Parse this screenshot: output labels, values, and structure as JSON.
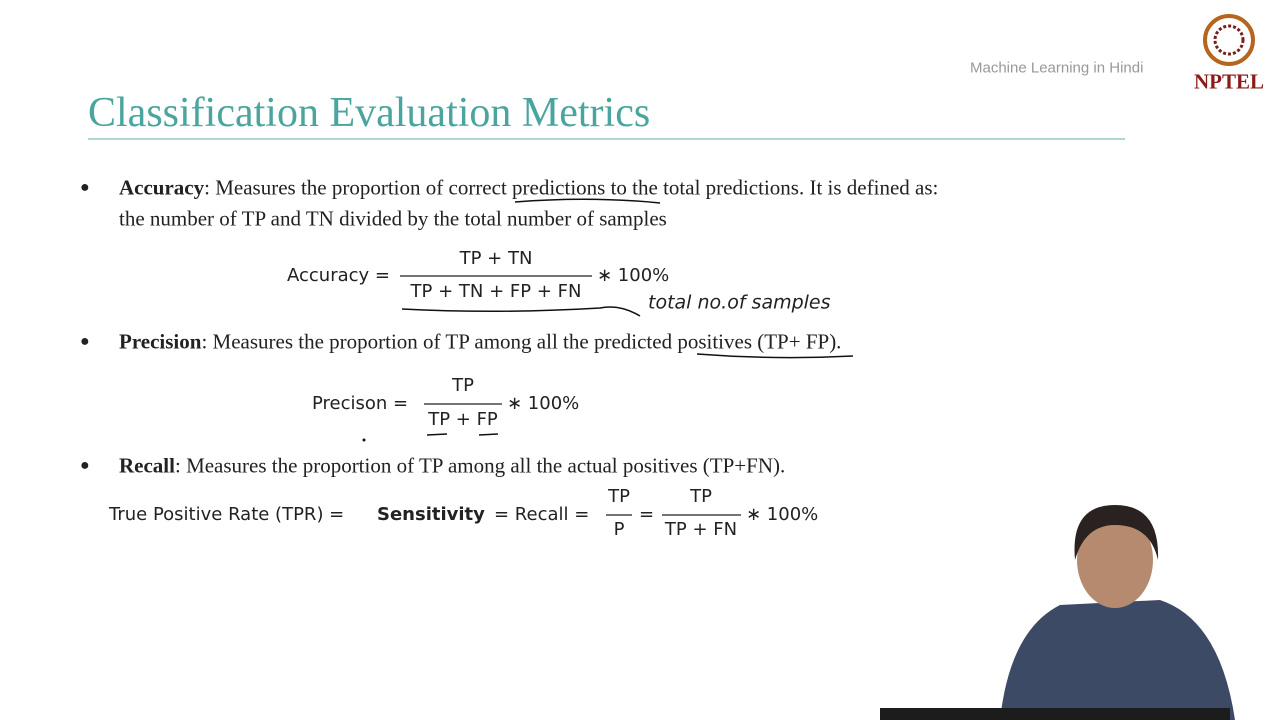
{
  "header": {
    "title": "Classification Evaluation Metrics",
    "course": "Machine Learning in Hindi",
    "logo": "NPTEL"
  },
  "accuracy": {
    "term": "Accuracy",
    "line1": ": Measures the proportion of correct predictions to the total predictions. It is defined as:",
    "line2": "the number of TP and TN divided by the total number of samples",
    "formula": {
      "lhs": "Accuracy =",
      "numerator": "TP + TN",
      "denominator": "TP + TN + FP + FN",
      "multiplier": "∗ 100%"
    },
    "annotation": "total no.of samples"
  },
  "precision": {
    "term": "Precision",
    "line1": ": Measures the proportion of TP among all the predicted positives (TP+ FP).",
    "formula": {
      "lhs": "Precison =",
      "numerator": "TP",
      "denominator": "TP + FP",
      "multiplier": "∗ 100%"
    }
  },
  "recall": {
    "term": "Recall",
    "line1": ": Measures the proportion of TP among all the actual positives (TP+FN).",
    "formula": {
      "lhs": "True Positive Rate (TPR) =",
      "bold": "Sensitivity",
      "middle": "= Recall =",
      "numerator1": "TP",
      "denominator1": "P",
      "equals": "=",
      "numerator2": "TP",
      "denominator2": "TP + FN",
      "multiplier": "∗ 100%"
    }
  }
}
